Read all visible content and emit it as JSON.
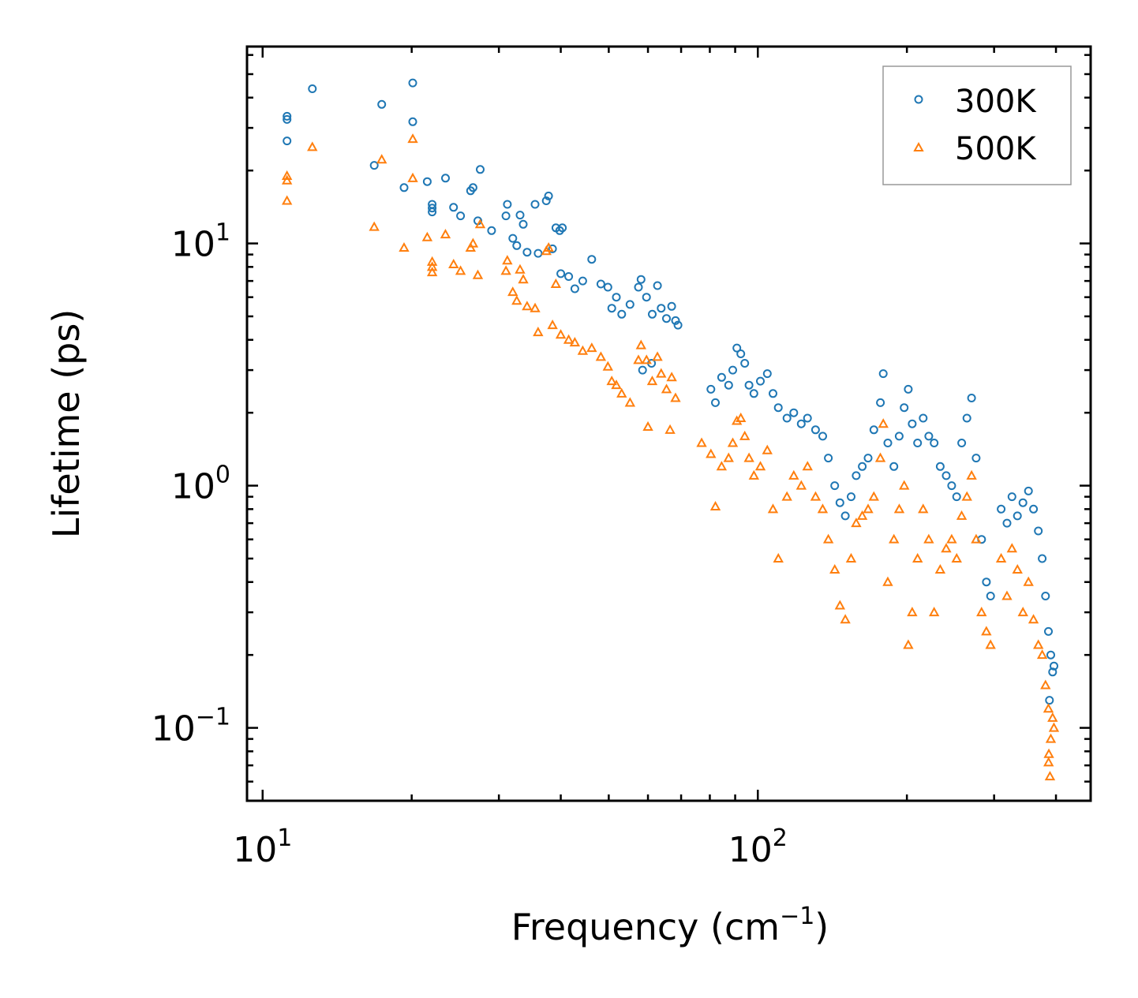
{
  "chart_data": {
    "type": "scatter",
    "title": "",
    "xlabel": "Frequency (cm",
    "xlabel_sup": "−1",
    "xlabel_tail": ")",
    "ylabel": "Lifetime (ps)",
    "xscale": "log",
    "yscale": "log",
    "xlim": [
      9.3,
      470
    ],
    "ylim": [
      0.05,
      65
    ],
    "grid": false,
    "legend_position": "top-right",
    "x_ticks": [
      {
        "value": 10,
        "base": "10",
        "exp": "1"
      },
      {
        "value": 100,
        "base": "10",
        "exp": "2"
      }
    ],
    "y_ticks": [
      {
        "value": 0.1,
        "base": "10",
        "exp": "−1"
      },
      {
        "value": 1,
        "base": "10",
        "exp": "0"
      },
      {
        "value": 10,
        "base": "10",
        "exp": "1"
      }
    ],
    "series": [
      {
        "name": "300K",
        "marker": "circle",
        "color": "#1f77b4",
        "points": [
          [
            11.2,
            33.5
          ],
          [
            11.2,
            32.5
          ],
          [
            11.2,
            26.5
          ],
          [
            12.6,
            43.5
          ],
          [
            16.8,
            21
          ],
          [
            17.4,
            37.5
          ],
          [
            19.3,
            17
          ],
          [
            20.1,
            46
          ],
          [
            20.1,
            31.8
          ],
          [
            21.5,
            18
          ],
          [
            22.0,
            14.5
          ],
          [
            22.0,
            14.0
          ],
          [
            22.0,
            13.5
          ],
          [
            23.4,
            18.6
          ],
          [
            24.3,
            14.1
          ],
          [
            25.1,
            13.0
          ],
          [
            26.3,
            16.5
          ],
          [
            26.6,
            17.0
          ],
          [
            27.2,
            12.4
          ],
          [
            27.5,
            20.2
          ],
          [
            29.0,
            11.3
          ],
          [
            31.0,
            13.0
          ],
          [
            31.2,
            14.5
          ],
          [
            32.0,
            10.5
          ],
          [
            32.6,
            9.8
          ],
          [
            33.1,
            13.1
          ],
          [
            33.6,
            12.0
          ],
          [
            34.2,
            9.2
          ],
          [
            35.5,
            14.5
          ],
          [
            36.0,
            9.1
          ],
          [
            37.4,
            15.0
          ],
          [
            37.8,
            15.7
          ],
          [
            38.5,
            9.5
          ],
          [
            39.1,
            11.6
          ],
          [
            39.8,
            11.3
          ],
          [
            40.3,
            11.6
          ],
          [
            40.0,
            7.5
          ],
          [
            41.5,
            7.3
          ],
          [
            42.7,
            6.5
          ],
          [
            44.3,
            7.0
          ],
          [
            46.2,
            8.6
          ],
          [
            48.2,
            6.8
          ],
          [
            49.8,
            6.6
          ],
          [
            50.7,
            5.4
          ],
          [
            51.8,
            6.0
          ],
          [
            53.1,
            5.1
          ],
          [
            55.2,
            5.6
          ],
          [
            57.4,
            6.6
          ],
          [
            58.1,
            7.1
          ],
          [
            59.6,
            6.0
          ],
          [
            61.2,
            5.1
          ],
          [
            62.7,
            6.7
          ],
          [
            63.8,
            5.4
          ],
          [
            65.4,
            4.9
          ],
          [
            67.0,
            5.5
          ],
          [
            68.2,
            4.8
          ],
          [
            69.0,
            4.6
          ],
          [
            61.0,
            3.2
          ],
          [
            58.5,
            3.0
          ],
          [
            80.4,
            2.5
          ],
          [
            82.1,
            2.2
          ],
          [
            84.5,
            2.8
          ],
          [
            87.3,
            2.6
          ],
          [
            89.0,
            3.0
          ],
          [
            90.7,
            3.7
          ],
          [
            92.4,
            3.5
          ],
          [
            94.1,
            3.2
          ],
          [
            96.0,
            2.6
          ],
          [
            98.2,
            2.4
          ],
          [
            101.2,
            2.7
          ],
          [
            104.5,
            2.9
          ],
          [
            107.3,
            2.4
          ],
          [
            110.0,
            2.1
          ],
          [
            114.5,
            1.9
          ],
          [
            118.2,
            2.0
          ],
          [
            122.4,
            1.8
          ],
          [
            126.0,
            1.9
          ],
          [
            130.8,
            1.7
          ],
          [
            135.2,
            1.6
          ],
          [
            138.8,
            1.3
          ],
          [
            143.0,
            1.0
          ],
          [
            146.5,
            0.85
          ],
          [
            150.2,
            0.75
          ],
          [
            154.3,
            0.9
          ],
          [
            158.0,
            1.1
          ],
          [
            162.5,
            1.2
          ],
          [
            167.0,
            1.3
          ],
          [
            171.5,
            1.7
          ],
          [
            176.8,
            2.2
          ],
          [
            179.2,
            2.9
          ],
          [
            183.0,
            1.5
          ],
          [
            188.3,
            1.2
          ],
          [
            193.0,
            1.6
          ],
          [
            197.5,
            2.1
          ],
          [
            201.3,
            2.5
          ],
          [
            205.0,
            1.8
          ],
          [
            210.2,
            1.5
          ],
          [
            215.7,
            1.9
          ],
          [
            221.4,
            1.6
          ],
          [
            227.0,
            1.5
          ],
          [
            233.5,
            1.2
          ],
          [
            240.1,
            1.1
          ],
          [
            246.3,
            1.0
          ],
          [
            252.1,
            0.9
          ],
          [
            258.0,
            1.5
          ],
          [
            264.4,
            1.9
          ],
          [
            270.2,
            2.3
          ],
          [
            276.0,
            1.3
          ],
          [
            283.0,
            0.6
          ],
          [
            289.4,
            0.4
          ],
          [
            295.1,
            0.35
          ],
          [
            310.0,
            0.8
          ],
          [
            318.5,
            0.7
          ],
          [
            326.0,
            0.9
          ],
          [
            334.4,
            0.75
          ],
          [
            343.1,
            0.85
          ],
          [
            352.0,
            0.95
          ],
          [
            360.3,
            0.8
          ],
          [
            368.5,
            0.65
          ],
          [
            375.2,
            0.5
          ],
          [
            381.0,
            0.35
          ],
          [
            386.2,
            0.25
          ],
          [
            390.5,
            0.2
          ],
          [
            393.8,
            0.17
          ],
          [
            396.2,
            0.18
          ],
          [
            388.0,
            0.13
          ]
        ]
      },
      {
        "name": "500K",
        "marker": "triangle",
        "color": "#ff7f0e",
        "points": [
          [
            11.2,
            19.0
          ],
          [
            11.2,
            18.2
          ],
          [
            11.2,
            15.0
          ],
          [
            12.6,
            25.0
          ],
          [
            16.8,
            11.7
          ],
          [
            17.4,
            22.2
          ],
          [
            19.3,
            9.6
          ],
          [
            20.1,
            27.0
          ],
          [
            20.1,
            18.6
          ],
          [
            21.5,
            10.6
          ],
          [
            22.0,
            8.4
          ],
          [
            22.0,
            8.0
          ],
          [
            22.0,
            7.6
          ],
          [
            23.4,
            10.9
          ],
          [
            24.3,
            8.2
          ],
          [
            25.1,
            7.7
          ],
          [
            26.3,
            9.6
          ],
          [
            26.6,
            10.0
          ],
          [
            27.2,
            7.4
          ],
          [
            27.5,
            12.0
          ],
          [
            31.0,
            7.7
          ],
          [
            31.2,
            8.5
          ],
          [
            32.0,
            6.3
          ],
          [
            32.6,
            5.8
          ],
          [
            33.1,
            7.8
          ],
          [
            33.6,
            7.1
          ],
          [
            34.2,
            5.5
          ],
          [
            35.5,
            5.4
          ],
          [
            36.0,
            4.3
          ],
          [
            37.4,
            9.3
          ],
          [
            37.8,
            9.6
          ],
          [
            38.5,
            4.6
          ],
          [
            39.1,
            6.8
          ],
          [
            40.0,
            4.2
          ],
          [
            41.5,
            4.0
          ],
          [
            42.7,
            3.9
          ],
          [
            44.3,
            3.6
          ],
          [
            46.2,
            3.7
          ],
          [
            48.2,
            3.4
          ],
          [
            49.8,
            3.1
          ],
          [
            50.7,
            2.7
          ],
          [
            51.8,
            2.6
          ],
          [
            53.1,
            2.4
          ],
          [
            55.2,
            2.2
          ],
          [
            57.4,
            3.3
          ],
          [
            58.1,
            3.8
          ],
          [
            59.6,
            3.3
          ],
          [
            61.2,
            2.7
          ],
          [
            62.7,
            3.4
          ],
          [
            63.8,
            2.9
          ],
          [
            65.4,
            2.5
          ],
          [
            67.0,
            2.8
          ],
          [
            68.2,
            2.3
          ],
          [
            60.0,
            1.75
          ],
          [
            66.5,
            1.7
          ],
          [
            77.0,
            1.5
          ],
          [
            80.4,
            1.35
          ],
          [
            82.1,
            0.82
          ],
          [
            84.5,
            1.2
          ],
          [
            87.3,
            1.3
          ],
          [
            89.0,
            1.5
          ],
          [
            90.7,
            1.85
          ],
          [
            92.4,
            1.9
          ],
          [
            94.1,
            1.6
          ],
          [
            96.0,
            1.3
          ],
          [
            98.2,
            1.1
          ],
          [
            101.2,
            1.2
          ],
          [
            104.5,
            1.4
          ],
          [
            107.3,
            0.8
          ],
          [
            110.0,
            0.5
          ],
          [
            114.5,
            0.9
          ],
          [
            118.2,
            1.1
          ],
          [
            122.4,
            1.0
          ],
          [
            126.0,
            1.2
          ],
          [
            130.8,
            0.9
          ],
          [
            135.2,
            0.8
          ],
          [
            138.8,
            0.6
          ],
          [
            143.0,
            0.45
          ],
          [
            146.5,
            0.32
          ],
          [
            150.2,
            0.28
          ],
          [
            154.3,
            0.5
          ],
          [
            158.0,
            0.7
          ],
          [
            162.5,
            0.75
          ],
          [
            167.0,
            0.8
          ],
          [
            171.5,
            0.9
          ],
          [
            176.8,
            1.3
          ],
          [
            179.2,
            1.8
          ],
          [
            183.0,
            0.4
          ],
          [
            188.3,
            0.6
          ],
          [
            193.0,
            0.8
          ],
          [
            197.5,
            1.0
          ],
          [
            201.3,
            0.22
          ],
          [
            205.0,
            0.3
          ],
          [
            210.2,
            0.5
          ],
          [
            215.7,
            0.8
          ],
          [
            221.4,
            0.6
          ],
          [
            227.0,
            0.3
          ],
          [
            233.5,
            0.45
          ],
          [
            240.1,
            0.55
          ],
          [
            246.3,
            0.6
          ],
          [
            252.1,
            0.5
          ],
          [
            258.0,
            0.75
          ],
          [
            264.4,
            0.9
          ],
          [
            270.2,
            1.1
          ],
          [
            276.0,
            0.6
          ],
          [
            283.0,
            0.3
          ],
          [
            289.4,
            0.25
          ],
          [
            295.1,
            0.22
          ],
          [
            310.0,
            0.5
          ],
          [
            318.5,
            0.35
          ],
          [
            326.0,
            0.55
          ],
          [
            334.4,
            0.45
          ],
          [
            343.1,
            0.3
          ],
          [
            352.0,
            0.4
          ],
          [
            360.3,
            0.28
          ],
          [
            368.5,
            0.22
          ],
          [
            375.2,
            0.2
          ],
          [
            381.0,
            0.15
          ],
          [
            386.2,
            0.12
          ],
          [
            390.5,
            0.09
          ],
          [
            393.8,
            0.11
          ],
          [
            396.2,
            0.1
          ],
          [
            386.5,
            0.072
          ],
          [
            387.0,
            0.078
          ],
          [
            389.0,
            0.063
          ]
        ]
      }
    ]
  }
}
